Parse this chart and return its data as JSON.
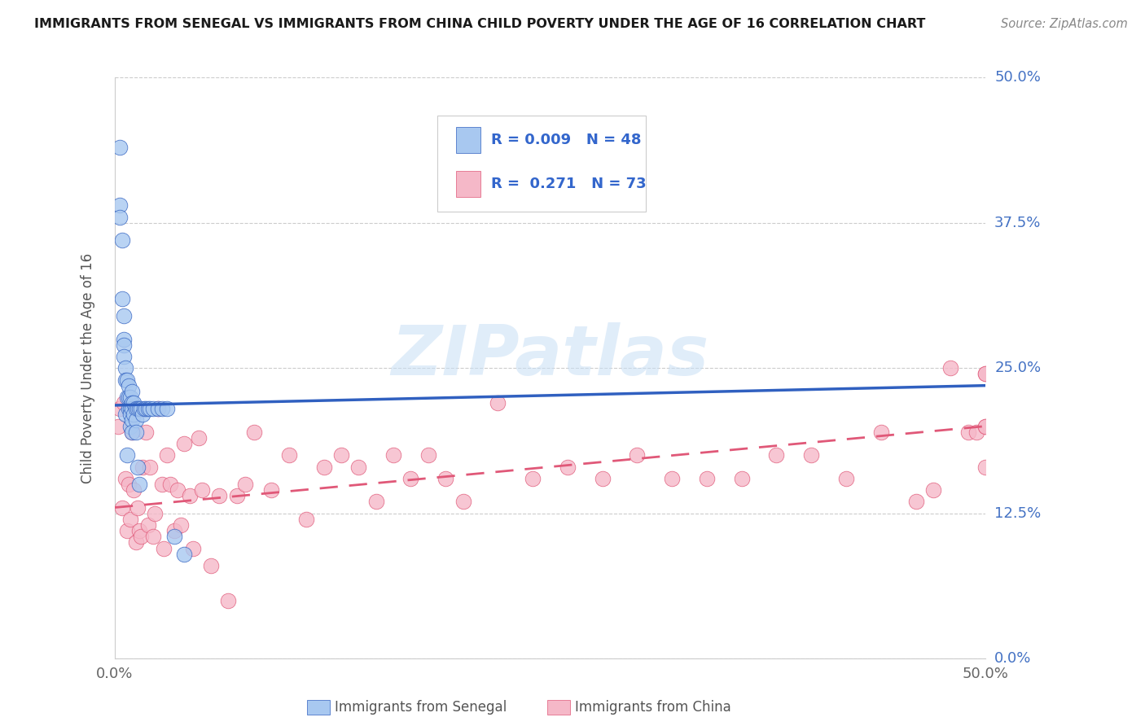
{
  "title": "IMMIGRANTS FROM SENEGAL VS IMMIGRANTS FROM CHINA CHILD POVERTY UNDER THE AGE OF 16 CORRELATION CHART",
  "source": "Source: ZipAtlas.com",
  "ylabel": "Child Poverty Under the Age of 16",
  "ytick_labels": [
    "0.0%",
    "12.5%",
    "25.0%",
    "37.5%",
    "50.0%"
  ],
  "ytick_values": [
    0.0,
    0.125,
    0.25,
    0.375,
    0.5
  ],
  "xtick_labels": [
    "0.0%",
    "50.0%"
  ],
  "xtick_values": [
    0.0,
    0.5
  ],
  "xlim": [
    0.0,
    0.5
  ],
  "ylim": [
    0.0,
    0.5
  ],
  "legend_R_senegal": "0.009",
  "legend_N_senegal": "48",
  "legend_R_china": "0.271",
  "legend_N_china": "73",
  "color_senegal": "#a8c8f0",
  "color_china": "#f5b8c8",
  "trendline_senegal_color": "#3060c0",
  "trendline_china_color": "#e05878",
  "watermark": "ZIPatlas",
  "senegal_x": [
    0.003,
    0.003,
    0.003,
    0.004,
    0.004,
    0.005,
    0.005,
    0.005,
    0.005,
    0.006,
    0.006,
    0.006,
    0.007,
    0.007,
    0.007,
    0.008,
    0.008,
    0.008,
    0.009,
    0.009,
    0.009,
    0.009,
    0.01,
    0.01,
    0.01,
    0.01,
    0.01,
    0.011,
    0.011,
    0.012,
    0.012,
    0.012,
    0.013,
    0.013,
    0.014,
    0.014,
    0.015,
    0.016,
    0.017,
    0.018,
    0.019,
    0.02,
    0.022,
    0.025,
    0.027,
    0.03,
    0.034,
    0.04
  ],
  "senegal_y": [
    0.44,
    0.39,
    0.38,
    0.36,
    0.31,
    0.295,
    0.275,
    0.27,
    0.26,
    0.25,
    0.24,
    0.21,
    0.24,
    0.225,
    0.175,
    0.235,
    0.225,
    0.215,
    0.225,
    0.215,
    0.21,
    0.2,
    0.23,
    0.22,
    0.215,
    0.205,
    0.195,
    0.22,
    0.21,
    0.215,
    0.205,
    0.195,
    0.215,
    0.165,
    0.215,
    0.15,
    0.215,
    0.21,
    0.215,
    0.215,
    0.215,
    0.215,
    0.215,
    0.215,
    0.215,
    0.215,
    0.105,
    0.09
  ],
  "china_x": [
    0.002,
    0.003,
    0.004,
    0.005,
    0.006,
    0.007,
    0.008,
    0.009,
    0.01,
    0.011,
    0.012,
    0.013,
    0.014,
    0.015,
    0.016,
    0.018,
    0.019,
    0.02,
    0.022,
    0.023,
    0.025,
    0.027,
    0.028,
    0.03,
    0.032,
    0.034,
    0.036,
    0.038,
    0.04,
    0.043,
    0.045,
    0.048,
    0.05,
    0.055,
    0.06,
    0.065,
    0.07,
    0.075,
    0.08,
    0.09,
    0.1,
    0.11,
    0.12,
    0.13,
    0.14,
    0.15,
    0.16,
    0.17,
    0.18,
    0.19,
    0.2,
    0.22,
    0.24,
    0.26,
    0.28,
    0.3,
    0.32,
    0.34,
    0.36,
    0.38,
    0.4,
    0.42,
    0.44,
    0.46,
    0.47,
    0.48,
    0.49,
    0.495,
    0.5,
    0.5,
    0.5,
    0.5,
    0.5
  ],
  "china_y": [
    0.2,
    0.215,
    0.13,
    0.22,
    0.155,
    0.11,
    0.15,
    0.12,
    0.195,
    0.145,
    0.1,
    0.13,
    0.11,
    0.105,
    0.165,
    0.195,
    0.115,
    0.165,
    0.105,
    0.125,
    0.215,
    0.15,
    0.095,
    0.175,
    0.15,
    0.11,
    0.145,
    0.115,
    0.185,
    0.14,
    0.095,
    0.19,
    0.145,
    0.08,
    0.14,
    0.05,
    0.14,
    0.15,
    0.195,
    0.145,
    0.175,
    0.12,
    0.165,
    0.175,
    0.165,
    0.135,
    0.175,
    0.155,
    0.175,
    0.155,
    0.135,
    0.22,
    0.155,
    0.165,
    0.155,
    0.175,
    0.155,
    0.155,
    0.155,
    0.175,
    0.175,
    0.155,
    0.195,
    0.135,
    0.145,
    0.25,
    0.195,
    0.195,
    0.245,
    0.2,
    0.165,
    0.2,
    0.245
  ],
  "senegal_trendline_x": [
    0.0,
    0.5
  ],
  "senegal_trendline_y": [
    0.218,
    0.235
  ],
  "china_trendline_x": [
    0.0,
    0.5
  ],
  "china_trendline_y": [
    0.13,
    0.2
  ]
}
